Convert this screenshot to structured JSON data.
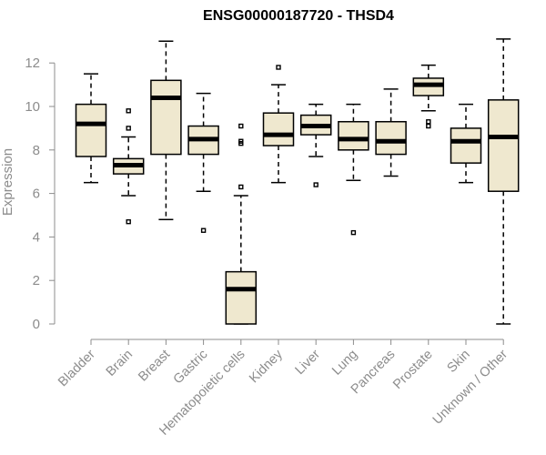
{
  "chart_data": {
    "type": "box",
    "title": "ENSG00000187720 - THSD4",
    "ylabel": "Expression",
    "xlabel": "",
    "ylim": [
      0,
      13
    ],
    "yticks": [
      0,
      2,
      4,
      6,
      8,
      10,
      12
    ],
    "grid": false,
    "legend": "none",
    "colors": {
      "box_fill": "#efe8cf",
      "box_stroke": "#000000",
      "axis": "#8c8c8c"
    },
    "categories": [
      "Bladder",
      "Brain",
      "Breast",
      "Gastric",
      "Hematopoietic cells",
      "Kidney",
      "Liver",
      "Lung",
      "Pancreas",
      "Prostate",
      "Skin",
      "Unknown / Other"
    ],
    "boxes": [
      {
        "category": "Bladder",
        "min": 6.5,
        "q1": 7.7,
        "median": 9.2,
        "q3": 10.1,
        "max": 11.5,
        "outliers": []
      },
      {
        "category": "Brain",
        "min": 5.9,
        "q1": 6.9,
        "median": 7.3,
        "q3": 7.6,
        "max": 8.6,
        "outliers": [
          9.8,
          9.0,
          4.7
        ]
      },
      {
        "category": "Breast",
        "min": 4.8,
        "q1": 7.8,
        "median": 10.4,
        "q3": 11.2,
        "max": 13.0,
        "outliers": []
      },
      {
        "category": "Gastric",
        "min": 6.1,
        "q1": 7.8,
        "median": 8.5,
        "q3": 9.1,
        "max": 10.6,
        "outliers": [
          4.3
        ]
      },
      {
        "category": "Hematopoietic cells",
        "min": 0.0,
        "q1": 0.0,
        "median": 1.6,
        "q3": 2.4,
        "max": 5.9,
        "outliers": [
          9.1,
          8.4,
          8.3,
          6.3
        ]
      },
      {
        "category": "Kidney",
        "min": 6.5,
        "q1": 8.2,
        "median": 8.7,
        "q3": 9.7,
        "max": 11.0,
        "outliers": [
          11.8
        ]
      },
      {
        "category": "Liver",
        "min": 7.7,
        "q1": 8.7,
        "median": 9.1,
        "q3": 9.6,
        "max": 10.1,
        "outliers": [
          6.4
        ]
      },
      {
        "category": "Lung",
        "min": 6.6,
        "q1": 8.0,
        "median": 8.5,
        "q3": 9.3,
        "max": 10.1,
        "outliers": [
          4.2
        ]
      },
      {
        "category": "Pancreas",
        "min": 6.8,
        "q1": 7.8,
        "median": 8.4,
        "q3": 9.3,
        "max": 10.8,
        "outliers": []
      },
      {
        "category": "Prostate",
        "min": 9.8,
        "q1": 10.5,
        "median": 11.0,
        "q3": 11.3,
        "max": 11.9,
        "outliers": [
          9.3,
          9.1
        ]
      },
      {
        "category": "Skin",
        "min": 6.5,
        "q1": 7.4,
        "median": 8.4,
        "q3": 9.0,
        "max": 10.1,
        "outliers": []
      },
      {
        "category": "Unknown / Other",
        "min": 0.0,
        "q1": 6.1,
        "median": 8.6,
        "q3": 10.3,
        "max": 13.1,
        "outliers": []
      }
    ]
  }
}
